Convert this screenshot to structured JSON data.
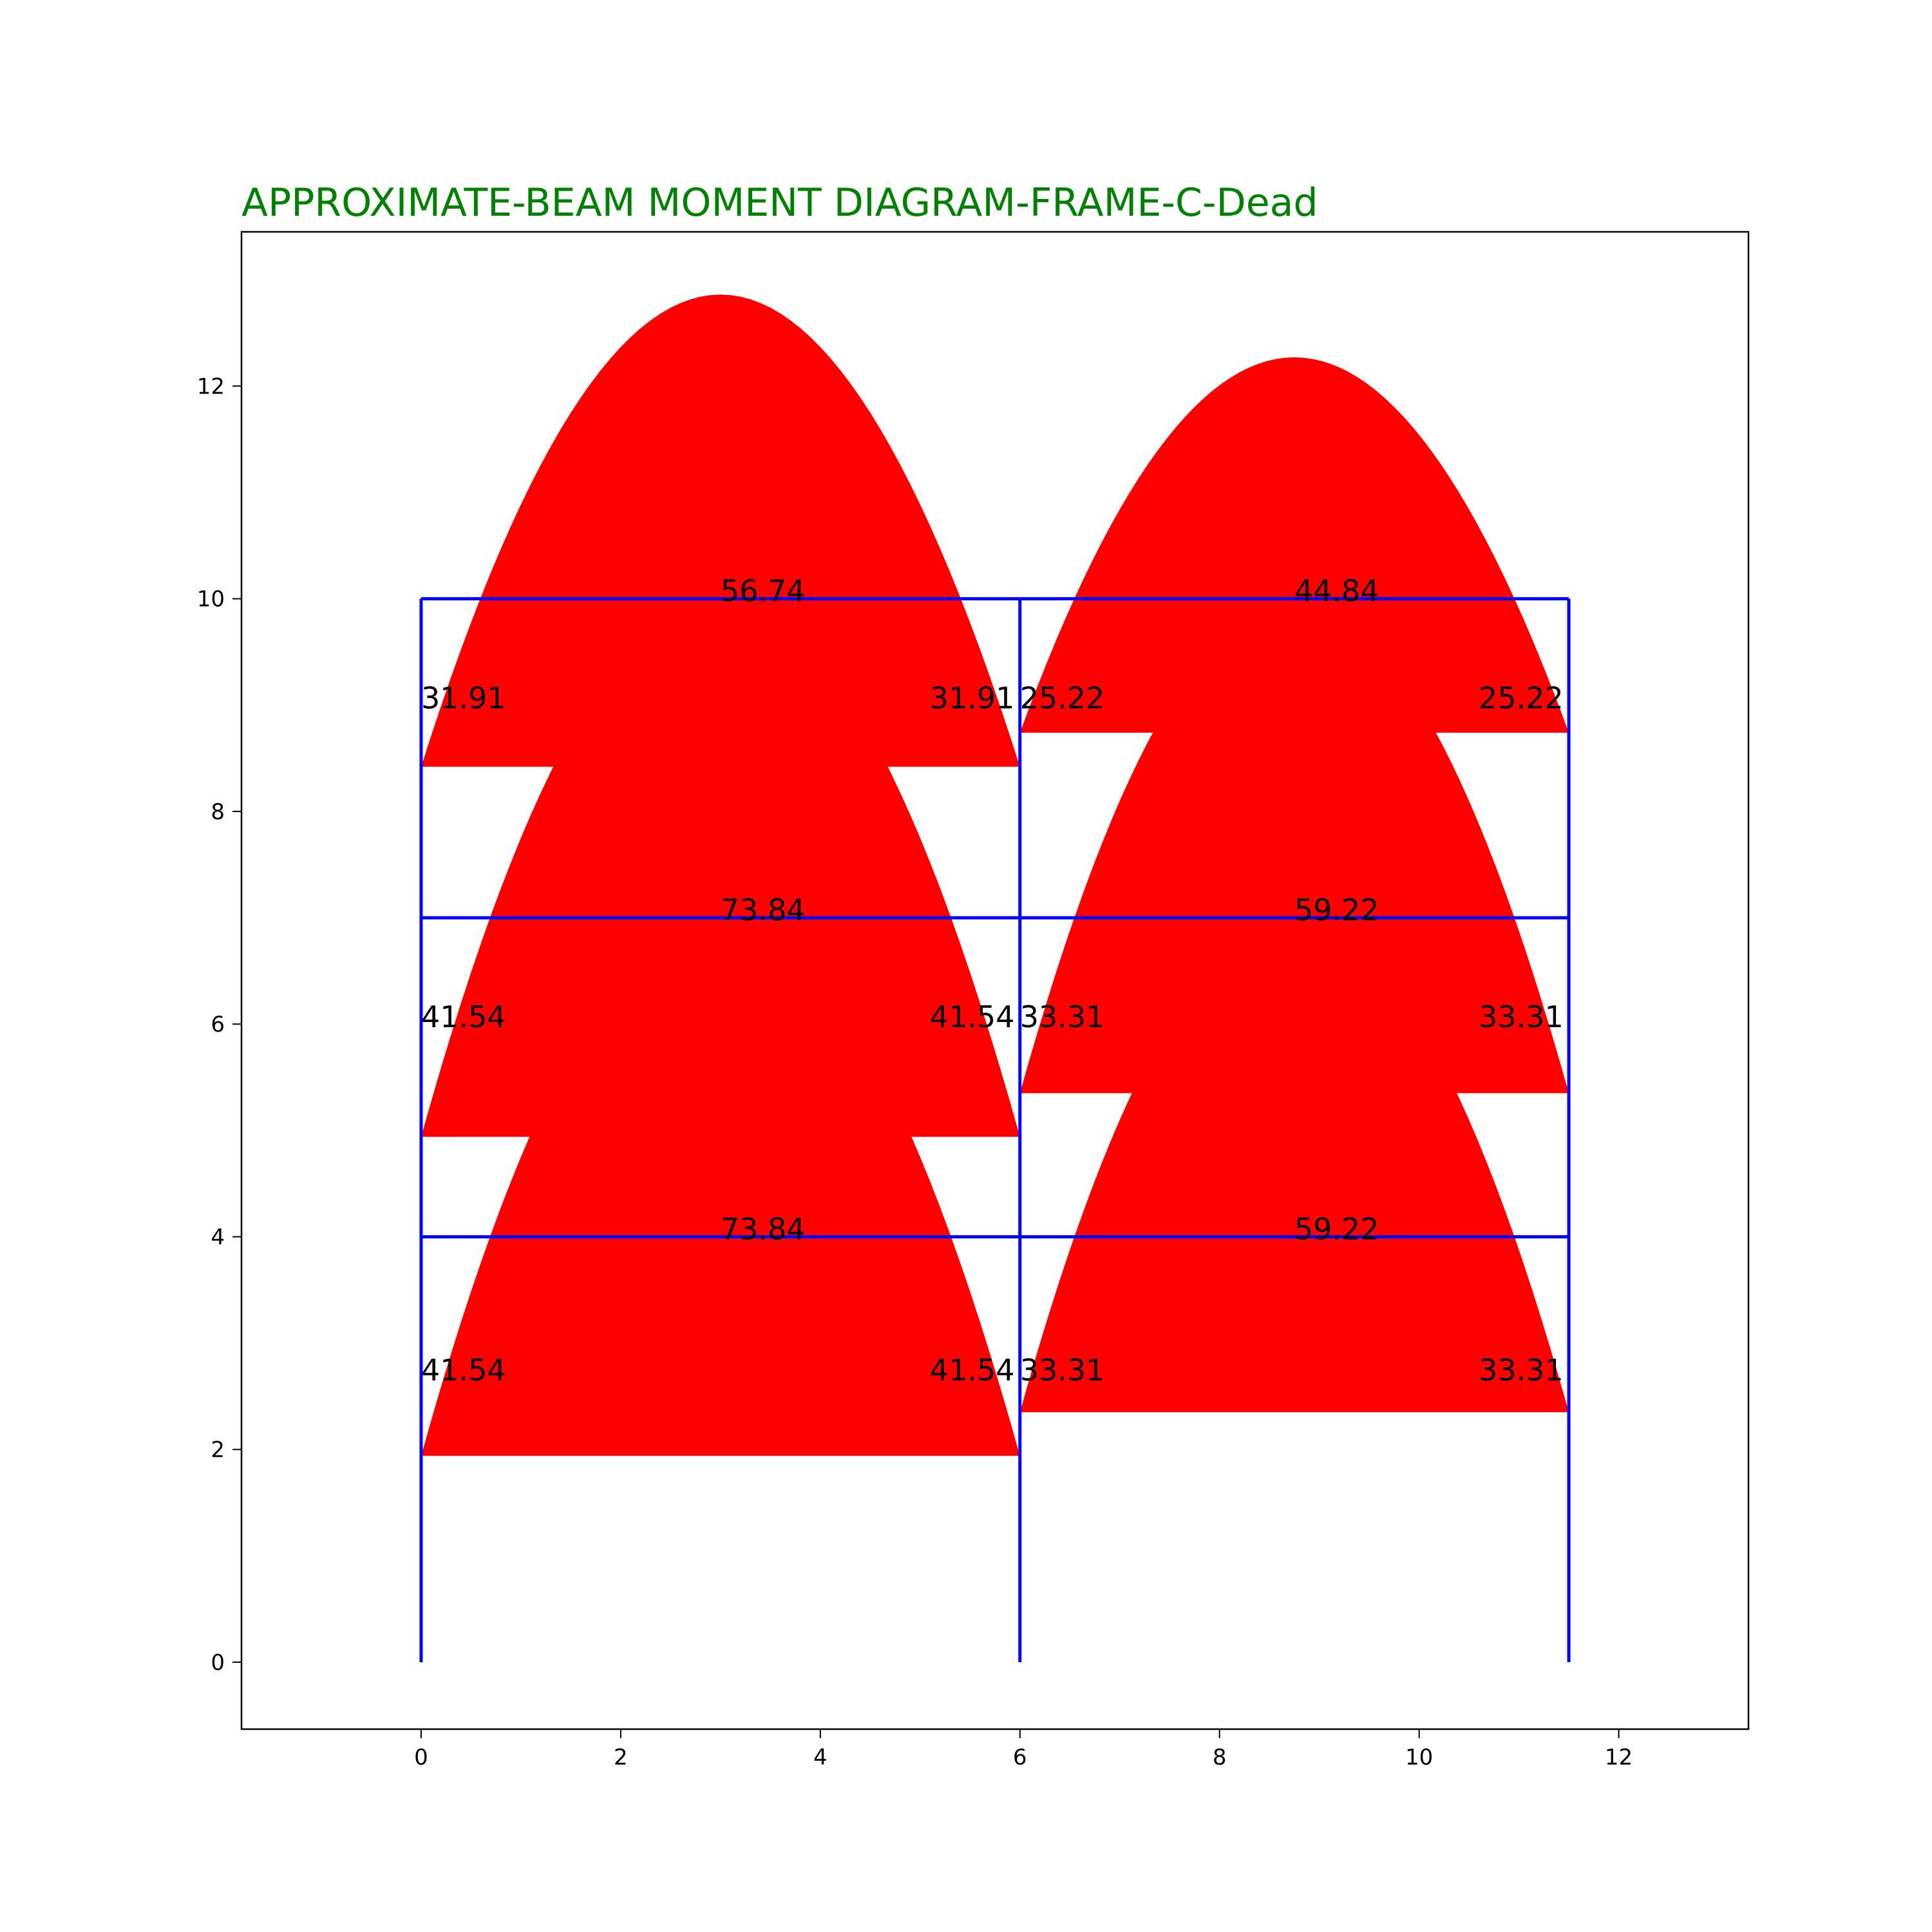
{
  "title": "APPROXIMATE-BEAM MOMENT DIAGRAM-FRAME-C-Dead",
  "colors": {
    "title": "#008000",
    "frame": "#0000ff",
    "moment_fill": "#ff0000",
    "axes": "#000000"
  },
  "chart_data": {
    "type": "structural-frame-moment-diagram",
    "xlim": [
      -1.8,
      13.3
    ],
    "ylim": [
      -0.63,
      13.45
    ],
    "xticks": [
      0,
      2,
      4,
      6,
      8,
      10,
      12
    ],
    "yticks": [
      0,
      2,
      4,
      6,
      8,
      10,
      12
    ],
    "columns": [
      {
        "x": 0,
        "y0": 0,
        "y1": 10
      },
      {
        "x": 6,
        "y0": 0,
        "y1": 10
      },
      {
        "x": 11.5,
        "y0": 0,
        "y1": 10
      }
    ],
    "beams": [
      {
        "x0": 0,
        "x1": 6,
        "y": 4,
        "midspan": "73.84",
        "end_left": "41.54",
        "end_right": "41.54",
        "parabola_peak": 7.0,
        "end_drop": 1.94,
        "support_label_y": 2.65
      },
      {
        "x0": 6,
        "x1": 11.5,
        "y": 4,
        "midspan": "59.22",
        "end_left": "33.31",
        "end_right": "33.31",
        "parabola_peak": 6.97,
        "end_drop": 2.35,
        "support_label_y": 2.65
      },
      {
        "x0": 0,
        "x1": 6,
        "y": 7,
        "midspan": "73.84",
        "end_left": "41.54",
        "end_right": "41.54",
        "parabola_peak": 10.0,
        "end_drop": 4.94,
        "support_label_y": 5.97
      },
      {
        "x0": 6,
        "x1": 11.5,
        "y": 7,
        "midspan": "59.22",
        "end_left": "33.31",
        "end_right": "33.31",
        "parabola_peak": 9.97,
        "end_drop": 5.35,
        "support_label_y": 5.97
      },
      {
        "x0": 0,
        "x1": 6,
        "y": 10,
        "midspan": "56.74",
        "end_left": "31.91",
        "end_right": "31.91",
        "parabola_peak": 12.86,
        "end_drop": 8.42,
        "support_label_y": 8.97
      },
      {
        "x0": 6,
        "x1": 11.5,
        "y": 10,
        "midspan": "44.84",
        "end_left": "25.22",
        "end_right": "25.22",
        "parabola_peak": 12.27,
        "end_drop": 8.74,
        "support_label_y": 8.97
      }
    ]
  }
}
